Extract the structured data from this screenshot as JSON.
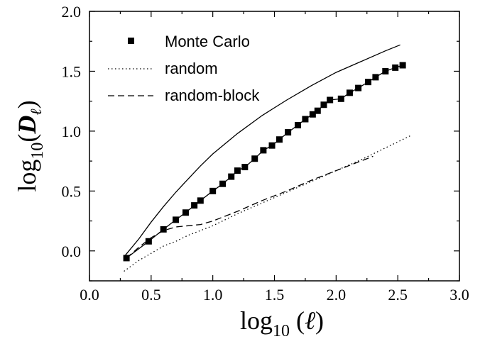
{
  "chart_data": {
    "type": "line",
    "title": "",
    "xlabel": {
      "base": "log",
      "sub": "10",
      "open": " (",
      "symbol": "ℓ",
      "close": ")"
    },
    "ylabel": {
      "base": "log",
      "sub": "10",
      "open": "(",
      "symbol": "D",
      "symsub": "ℓ",
      "close": ")"
    },
    "xlim": [
      0.0,
      3.0
    ],
    "ylim": [
      -0.25,
      2.0
    ],
    "xticks": [
      "0.0",
      "0.5",
      "1.0",
      "1.5",
      "2.0",
      "2.5",
      "3.0"
    ],
    "yticks": [
      "0.0",
      "0.5",
      "1.0",
      "1.5",
      "2.0"
    ],
    "grid": false,
    "legend_placement": "top-left",
    "legend": [
      "Monte Carlo",
      "random",
      "random-block"
    ],
    "series": [
      {
        "name": "Monte Carlo",
        "style": "markers-with-line",
        "x": [
          0.3,
          0.48,
          0.6,
          0.7,
          0.78,
          0.85,
          0.9,
          1.0,
          1.08,
          1.15,
          1.2,
          1.26,
          1.34,
          1.41,
          1.48,
          1.54,
          1.61,
          1.69,
          1.75,
          1.81,
          1.85,
          1.9,
          1.95,
          2.04,
          2.11,
          2.18,
          2.26,
          2.32,
          2.4,
          2.48,
          2.54
        ],
        "y": [
          -0.06,
          0.08,
          0.18,
          0.26,
          0.32,
          0.38,
          0.42,
          0.5,
          0.56,
          0.62,
          0.67,
          0.7,
          0.77,
          0.84,
          0.88,
          0.93,
          0.99,
          1.05,
          1.1,
          1.14,
          1.17,
          1.22,
          1.26,
          1.27,
          1.32,
          1.36,
          1.41,
          1.45,
          1.5,
          1.53,
          1.55
        ]
      },
      {
        "name": "",
        "style": "solid",
        "x": [
          0.28,
          0.4,
          0.5,
          0.6,
          0.7,
          0.8,
          0.9,
          1.0,
          1.2,
          1.4,
          1.6,
          1.8,
          2.0,
          2.2,
          2.4,
          2.52
        ],
        "y": [
          -0.05,
          0.1,
          0.24,
          0.37,
          0.49,
          0.6,
          0.71,
          0.81,
          0.98,
          1.13,
          1.26,
          1.38,
          1.49,
          1.58,
          1.67,
          1.72
        ]
      },
      {
        "name": "random",
        "style": "dotted",
        "x": [
          0.28,
          0.4,
          0.5,
          0.6,
          0.7,
          0.8,
          0.9,
          1.0,
          1.2,
          1.4,
          1.6,
          1.8,
          2.0,
          2.2,
          2.4,
          2.6
        ],
        "y": [
          -0.17,
          -0.08,
          -0.02,
          0.04,
          0.08,
          0.13,
          0.17,
          0.21,
          0.31,
          0.4,
          0.49,
          0.58,
          0.67,
          0.76,
          0.86,
          0.96
        ]
      },
      {
        "name": "random-block",
        "style": "dashed",
        "x": [
          0.3,
          0.4,
          0.5,
          0.6,
          0.7,
          0.8,
          0.9,
          1.0,
          1.2,
          1.4,
          1.6,
          1.8,
          2.0,
          2.2,
          2.3
        ],
        "y": [
          -0.06,
          0.03,
          0.11,
          0.17,
          0.2,
          0.21,
          0.22,
          0.25,
          0.33,
          0.42,
          0.5,
          0.59,
          0.67,
          0.75,
          0.79
        ]
      }
    ]
  }
}
